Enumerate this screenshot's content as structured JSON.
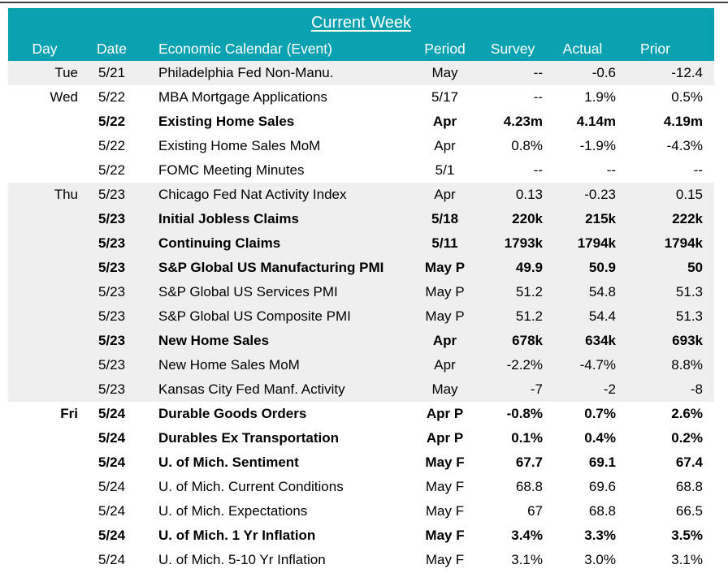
{
  "accent_color": "#0aa2b1",
  "stripe_color": "#efefef",
  "chart_data": {
    "type": "table",
    "title": "Current Week",
    "columns": [
      "Day",
      "Date",
      "Economic Calendar (Event)",
      "Period",
      "Survey",
      "Actual",
      "Prior"
    ],
    "rows": [
      {
        "day": "Tue",
        "date": "5/21",
        "event": "Philadelphia Fed Non-Manu.",
        "period": "May",
        "survey": "--",
        "actual": "-0.6",
        "prior": "-12.4",
        "bold": false,
        "shaded": true
      },
      {
        "day": "Wed",
        "date": "5/22",
        "event": "MBA Mortgage Applications",
        "period": "5/17",
        "survey": "--",
        "actual": "1.9%",
        "prior": "0.5%",
        "bold": false,
        "shaded": false
      },
      {
        "day": "",
        "date": "5/22",
        "event": "Existing Home Sales",
        "period": "Apr",
        "survey": "4.23m",
        "actual": "4.14m",
        "prior": "4.19m",
        "bold": true,
        "shaded": false
      },
      {
        "day": "",
        "date": "5/22",
        "event": "Existing Home Sales MoM",
        "period": "Apr",
        "survey": "0.8%",
        "actual": "-1.9%",
        "prior": "-4.3%",
        "bold": false,
        "shaded": false
      },
      {
        "day": "",
        "date": "5/22",
        "event": "FOMC Meeting Minutes",
        "period": "5/1",
        "survey": "--",
        "actual": "--",
        "prior": "--",
        "bold": false,
        "shaded": false
      },
      {
        "day": "Thu",
        "date": "5/23",
        "event": "Chicago Fed Nat Activity Index",
        "period": "Apr",
        "survey": "0.13",
        "actual": "-0.23",
        "prior": "0.15",
        "bold": false,
        "shaded": true
      },
      {
        "day": "",
        "date": "5/23",
        "event": "Initial Jobless Claims",
        "period": "5/18",
        "survey": "220k",
        "actual": "215k",
        "prior": "222k",
        "bold": true,
        "shaded": true
      },
      {
        "day": "",
        "date": "5/23",
        "event": "Continuing Claims",
        "period": "5/11",
        "survey": "1793k",
        "actual": "1794k",
        "prior": "1794k",
        "bold": true,
        "shaded": true
      },
      {
        "day": "",
        "date": "5/23",
        "event": "S&P Global US Manufacturing PMI",
        "period": "May P",
        "survey": "49.9",
        "actual": "50.9",
        "prior": "50",
        "bold": true,
        "shaded": true
      },
      {
        "day": "",
        "date": "5/23",
        "event": "S&P Global US Services PMI",
        "period": "May P",
        "survey": "51.2",
        "actual": "54.8",
        "prior": "51.3",
        "bold": false,
        "shaded": true
      },
      {
        "day": "",
        "date": "5/23",
        "event": "S&P Global US Composite PMI",
        "period": "May P",
        "survey": "51.2",
        "actual": "54.4",
        "prior": "51.3",
        "bold": false,
        "shaded": true
      },
      {
        "day": "",
        "date": "5/23",
        "event": "New Home Sales",
        "period": "Apr",
        "survey": "678k",
        "actual": "634k",
        "prior": "693k",
        "bold": true,
        "shaded": true
      },
      {
        "day": "",
        "date": "5/23",
        "event": "New Home Sales MoM",
        "period": "Apr",
        "survey": "-2.2%",
        "actual": "-4.7%",
        "prior": "8.8%",
        "bold": false,
        "shaded": true
      },
      {
        "day": "",
        "date": "5/23",
        "event": "Kansas City Fed Manf. Activity",
        "period": "May",
        "survey": "-7",
        "actual": "-2",
        "prior": "-8",
        "bold": false,
        "shaded": true
      },
      {
        "day": "Fri",
        "date": "5/24",
        "event": "Durable Goods Orders",
        "period": "Apr P",
        "survey": "-0.8%",
        "actual": "0.7%",
        "prior": "2.6%",
        "bold": true,
        "shaded": false
      },
      {
        "day": "",
        "date": "5/24",
        "event": "Durables Ex Transportation",
        "period": "Apr P",
        "survey": "0.1%",
        "actual": "0.4%",
        "prior": "0.2%",
        "bold": true,
        "shaded": false
      },
      {
        "day": "",
        "date": "5/24",
        "event": "U. of Mich. Sentiment",
        "period": "May F",
        "survey": "67.7",
        "actual": "69.1",
        "prior": "67.4",
        "bold": true,
        "shaded": false
      },
      {
        "day": "",
        "date": "5/24",
        "event": "U. of Mich. Current Conditions",
        "period": "May F",
        "survey": "68.8",
        "actual": "69.6",
        "prior": "68.8",
        "bold": false,
        "shaded": false
      },
      {
        "day": "",
        "date": "5/24",
        "event": "U. of Mich. Expectations",
        "period": "May F",
        "survey": "67",
        "actual": "68.8",
        "prior": "66.5",
        "bold": false,
        "shaded": false
      },
      {
        "day": "",
        "date": "5/24",
        "event": "U. of Mich. 1 Yr Inflation",
        "period": "May F",
        "survey": "3.4%",
        "actual": "3.3%",
        "prior": "3.5%",
        "bold": true,
        "shaded": false
      },
      {
        "day": "",
        "date": "5/24",
        "event": "U. of Mich. 5-10 Yr Inflation",
        "period": "May F",
        "survey": "3.1%",
        "actual": "3.0%",
        "prior": "3.1%",
        "bold": false,
        "shaded": false
      }
    ]
  }
}
